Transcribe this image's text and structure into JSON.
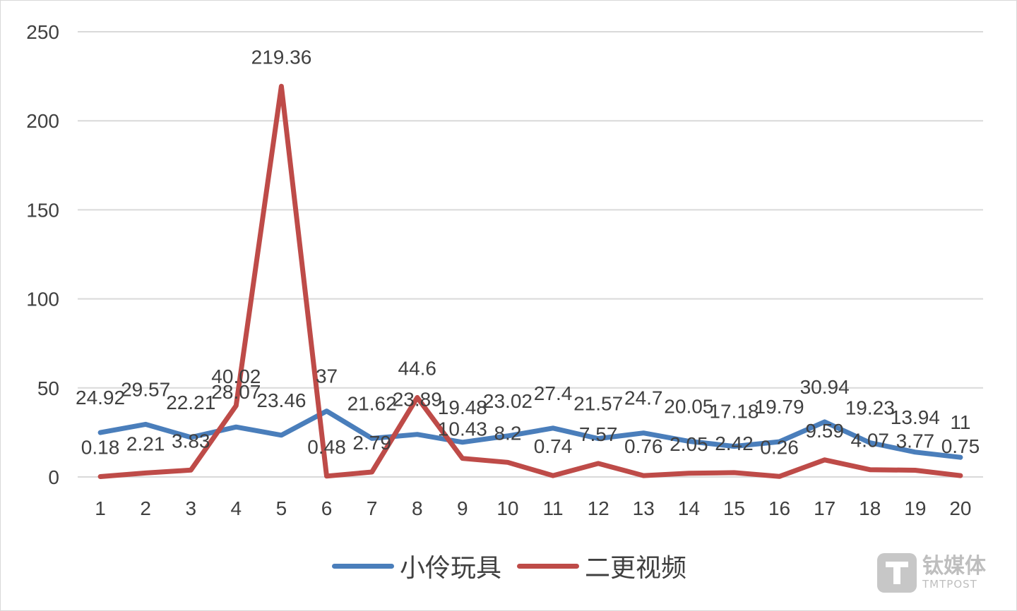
{
  "chart_data": {
    "type": "line",
    "title": "",
    "xlabel": "",
    "ylabel": "",
    "categories": [
      "1",
      "2",
      "3",
      "4",
      "5",
      "6",
      "7",
      "8",
      "9",
      "10",
      "11",
      "12",
      "13",
      "14",
      "15",
      "16",
      "17",
      "18",
      "19",
      "20"
    ],
    "y_ticks": [
      "0",
      "50",
      "100",
      "150",
      "200",
      "250"
    ],
    "ylim": [
      0,
      250
    ],
    "grid": true,
    "legend_position": "bottom",
    "series": [
      {
        "name": "小伶玩具",
        "color": "#4a7ebb",
        "values": [
          24.92,
          29.57,
          22.21,
          28.07,
          23.46,
          37,
          21.62,
          23.89,
          19.48,
          23.02,
          27.4,
          21.57,
          24.7,
          20.05,
          17.18,
          19.79,
          30.94,
          19.23,
          13.94,
          11
        ],
        "labels": [
          "24.92",
          "29.57",
          "22.21",
          "28.07",
          "23.46",
          "37",
          "21.62",
          "23.89",
          "19.48",
          "23.02",
          "27.4",
          "21.57",
          "24.7",
          "20.05",
          "17.18",
          "19.79",
          "30.94",
          "19.23",
          "13.94",
          "11"
        ]
      },
      {
        "name": "二更视频",
        "color": "#be4b48",
        "values": [
          0.18,
          2.21,
          3.83,
          40.02,
          219.36,
          0.48,
          2.79,
          44.6,
          10.43,
          8.2,
          0.74,
          7.57,
          0.76,
          2.05,
          2.42,
          0.26,
          9.59,
          4.07,
          3.77,
          0.75
        ],
        "labels": [
          "0.18",
          "2.21",
          "3.83",
          "40.02",
          "219.36",
          "0.48",
          "2.79",
          "44.6",
          "10.43",
          "8.2",
          "0.74",
          "7.57",
          "0.76",
          "2.05",
          "2.42",
          "0.26",
          "9.59",
          "4.07",
          "3.77",
          "0.75"
        ]
      }
    ]
  },
  "watermark": {
    "cn": "钛媒体",
    "en": "TMTPOST"
  }
}
